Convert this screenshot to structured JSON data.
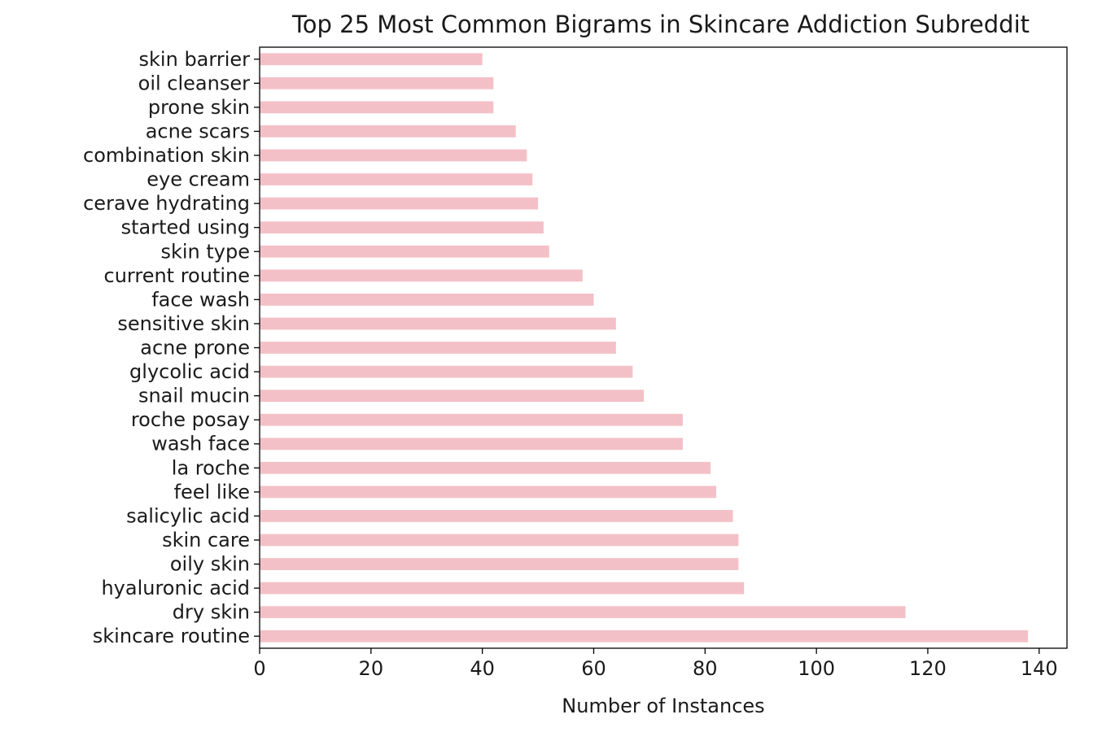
{
  "chart_data": {
    "type": "bar",
    "orientation": "horizontal",
    "title": "Top 25 Most Common Bigrams in Skincare Addiction Subreddit",
    "xlabel": "Number of Instances",
    "ylabel": "",
    "categories": [
      "skincare routine",
      "dry skin",
      "hyaluronic acid",
      "oily skin",
      "skin care",
      "salicylic acid",
      "feel like",
      "la roche",
      "wash face",
      "roche posay",
      "snail mucin",
      "glycolic acid",
      "acne prone",
      "sensitive skin",
      "face wash",
      "current routine",
      "skin type",
      "started using",
      "cerave hydrating",
      "eye cream",
      "combination skin",
      "acne scars",
      "prone skin",
      "oil cleanser",
      "skin barrier"
    ],
    "values": [
      138,
      116,
      87,
      86,
      86,
      85,
      82,
      81,
      76,
      76,
      69,
      67,
      64,
      64,
      60,
      58,
      52,
      51,
      50,
      49,
      48,
      46,
      42,
      42,
      40
    ],
    "xlim": [
      0,
      145
    ],
    "xticks": [
      0,
      20,
      40,
      60,
      80,
      100,
      120,
      140
    ],
    "bar_color": "#f4c0c8",
    "grid": false,
    "legend": "none"
  }
}
